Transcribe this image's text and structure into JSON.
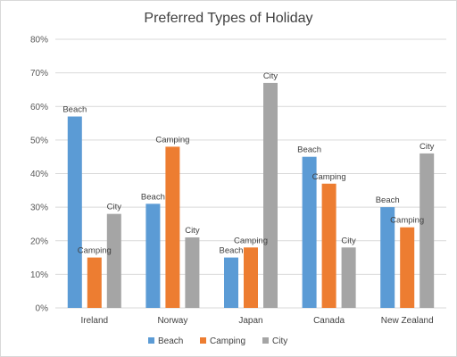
{
  "chart_data": {
    "type": "bar",
    "title": "Preferred Types of Holiday",
    "categories": [
      "Ireland",
      "Norway",
      "Japan",
      "Canada",
      "New Zealand"
    ],
    "series": [
      {
        "name": "Beach",
        "color": "#5b9bd5",
        "values": [
          57,
          31,
          15,
          45,
          30
        ]
      },
      {
        "name": "Camping",
        "color": "#ed7d31",
        "values": [
          15,
          48,
          18,
          37,
          24
        ]
      },
      {
        "name": "City",
        "color": "#a5a5a5",
        "values": [
          28,
          21,
          67,
          18,
          46
        ]
      }
    ],
    "y_ticks": [
      "0%",
      "10%",
      "20%",
      "30%",
      "40%",
      "50%",
      "60%",
      "70%",
      "80%"
    ],
    "ylim": [
      0,
      80
    ],
    "grid": true,
    "legend_position": "bottom"
  }
}
